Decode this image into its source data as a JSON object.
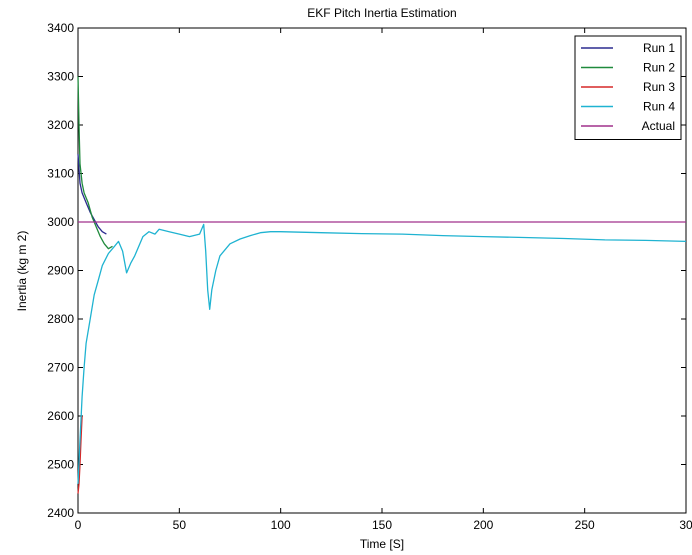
{
  "chart_data": {
    "type": "line",
    "title": "EKF Pitch Inertia Estimation",
    "xlabel": "Time [S]",
    "ylabel": "Inertia (kg m 2)",
    "xlim": [
      0,
      300
    ],
    "ylim": [
      2400,
      3400
    ],
    "x_ticks": [
      "0",
      "50",
      "100",
      "150",
      "200",
      "250",
      "30"
    ],
    "y_ticks": [
      "2400",
      "2500",
      "2600",
      "2700",
      "2800",
      "2900",
      "3000",
      "3100",
      "3200",
      "3300",
      "3400"
    ],
    "legend_position": "top-right",
    "grid": false,
    "series": [
      {
        "name": "Run 1",
        "color": "#2b2b8f",
        "points": [
          [
            0,
            3140
          ],
          [
            1,
            3080
          ],
          [
            2,
            3060
          ],
          [
            4,
            3040
          ],
          [
            6,
            3020
          ],
          [
            8,
            3005
          ],
          [
            10,
            2990
          ],
          [
            12,
            2980
          ],
          [
            14,
            2975
          ]
        ]
      },
      {
        "name": "Run 2",
        "color": "#1f8a3c",
        "points": [
          [
            0,
            3300
          ],
          [
            0.5,
            3200
          ],
          [
            1,
            3120
          ],
          [
            2,
            3080
          ],
          [
            3,
            3060
          ],
          [
            5,
            3040
          ],
          [
            7,
            3010
          ],
          [
            9,
            2990
          ],
          [
            11,
            2970
          ],
          [
            13,
            2955
          ],
          [
            15,
            2945
          ],
          [
            17,
            2950
          ]
        ]
      },
      {
        "name": "Run 3",
        "color": "#d62828",
        "points": [
          [
            0,
            2440
          ],
          [
            0.5,
            2460
          ],
          [
            1,
            2500
          ],
          [
            1.5,
            2550
          ],
          [
            2,
            2600
          ]
        ]
      },
      {
        "name": "Run 4",
        "color": "#1fb3d1",
        "points": [
          [
            0,
            2460
          ],
          [
            1,
            2550
          ],
          [
            2,
            2640
          ],
          [
            3,
            2700
          ],
          [
            4,
            2750
          ],
          [
            6,
            2800
          ],
          [
            8,
            2850
          ],
          [
            10,
            2880
          ],
          [
            12,
            2910
          ],
          [
            15,
            2935
          ],
          [
            18,
            2950
          ],
          [
            20,
            2960
          ],
          [
            22,
            2940
          ],
          [
            24,
            2895
          ],
          [
            26,
            2915
          ],
          [
            28,
            2930
          ],
          [
            30,
            2950
          ],
          [
            32,
            2970
          ],
          [
            35,
            2980
          ],
          [
            38,
            2975
          ],
          [
            40,
            2985
          ],
          [
            45,
            2980
          ],
          [
            50,
            2975
          ],
          [
            55,
            2970
          ],
          [
            60,
            2975
          ],
          [
            62,
            2995
          ],
          [
            63,
            2940
          ],
          [
            64,
            2860
          ],
          [
            65,
            2820
          ],
          [
            66,
            2860
          ],
          [
            68,
            2900
          ],
          [
            70,
            2930
          ],
          [
            75,
            2955
          ],
          [
            80,
            2965
          ],
          [
            85,
            2972
          ],
          [
            90,
            2978
          ],
          [
            95,
            2980
          ],
          [
            100,
            2980
          ],
          [
            120,
            2978
          ],
          [
            140,
            2976
          ],
          [
            160,
            2975
          ],
          [
            180,
            2972
          ],
          [
            200,
            2970
          ],
          [
            220,
            2968
          ],
          [
            240,
            2966
          ],
          [
            260,
            2963
          ],
          [
            280,
            2962
          ],
          [
            300,
            2960
          ]
        ]
      },
      {
        "name": "Actual",
        "color": "#a0308c",
        "points": [
          [
            0,
            3000
          ],
          [
            300,
            3000
          ]
        ]
      }
    ]
  }
}
